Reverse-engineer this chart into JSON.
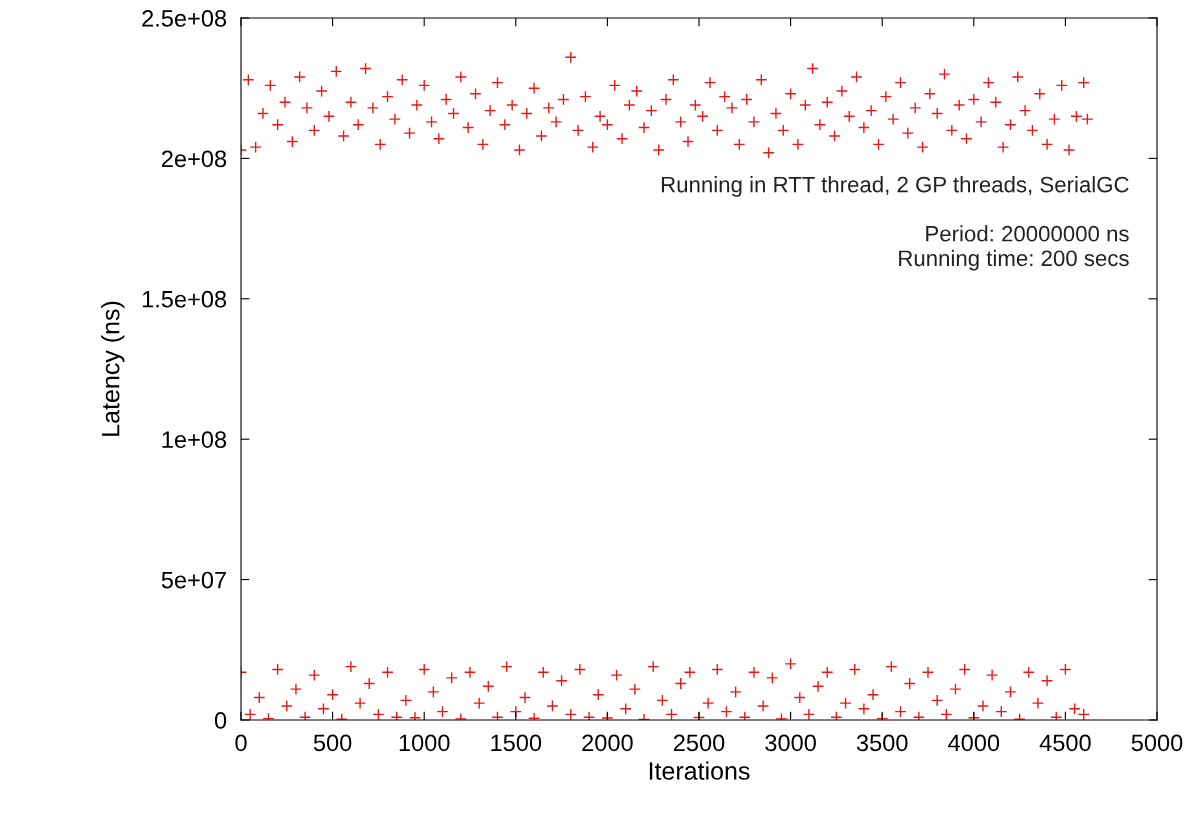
{
  "chart_data": {
    "type": "scatter",
    "xlabel": "Iterations",
    "ylabel": "Latency (ns)",
    "annotations": [
      "Running in RTT thread, 2 GP threads, SerialGC",
      "Period: 20000000 ns",
      "Running time: 200 secs"
    ],
    "xlim": [
      0,
      5000
    ],
    "xticks": [
      0,
      500,
      1000,
      1500,
      2000,
      2500,
      3000,
      3500,
      4000,
      4500,
      5000
    ],
    "ylim": [
      0,
      250000000
    ],
    "yticks": [
      0,
      {
        "value": 50000000,
        "label": "5e+07"
      },
      {
        "value": 100000000,
        "label": "1e+08"
      },
      {
        "value": 150000000,
        "label": "1.5e+08"
      },
      {
        "value": 200000000,
        "label": "2e+08"
      },
      {
        "value": 250000000,
        "label": "2.5e+08"
      }
    ],
    "grid": false,
    "legend": false,
    "marker": "cross",
    "series": [
      {
        "color": "#e81818",
        "x": [
          0,
          40,
          80,
          120,
          160,
          200,
          240,
          280,
          320,
          360,
          400,
          440,
          480,
          520,
          560,
          600,
          640,
          680,
          720,
          760,
          800,
          840,
          880,
          920,
          960,
          1000,
          1040,
          1080,
          1120,
          1160,
          1200,
          1240,
          1280,
          1320,
          1360,
          1400,
          1440,
          1480,
          1520,
          1560,
          1600,
          1640,
          1680,
          1720,
          1760,
          1800,
          1840,
          1880,
          1920,
          1960,
          2000,
          2040,
          2080,
          2120,
          2160,
          2200,
          2240,
          2280,
          2320,
          2360,
          2400,
          2440,
          2480,
          2520,
          2560,
          2600,
          2640,
          2680,
          2720,
          2760,
          2800,
          2840,
          2880,
          2920,
          2960,
          3000,
          3040,
          3080,
          3120,
          3160,
          3200,
          3240,
          3280,
          3320,
          3360,
          3400,
          3440,
          3480,
          3520,
          3560,
          3600,
          3640,
          3680,
          3720,
          3760,
          3800,
          3840,
          3880,
          3920,
          3960,
          4000,
          4040,
          4080,
          4120,
          4160,
          4200,
          4240,
          4280,
          4320,
          4360,
          4400,
          4440,
          4480,
          4520,
          4560,
          4600,
          4620
        ],
        "values": [
          203000000.0,
          228000000.0,
          204000000.0,
          216000000.0,
          226000000.0,
          212000000.0,
          220000000.0,
          206000000.0,
          229000000.0,
          218000000.0,
          210000000.0,
          224000000.0,
          215000000.0,
          231000000.0,
          208000000.0,
          220000000.0,
          212000000.0,
          232000000.0,
          218000000.0,
          205000000.0,
          222000000.0,
          214000000.0,
          228000000.0,
          209000000.0,
          219000000.0,
          226000000.0,
          213000000.0,
          207000000.0,
          221000000.0,
          216000000.0,
          229000000.0,
          211000000.0,
          223000000.0,
          205000000.0,
          217000000.0,
          227000000.0,
          212000000.0,
          219000000.0,
          203000000.0,
          216000000.0,
          225000000.0,
          208000000.0,
          218000000.0,
          213000000.0,
          221000000.0,
          236000000.0,
          210000000.0,
          222000000.0,
          204000000.0,
          215000000.0,
          212000000.0,
          226000000.0,
          207000000.0,
          219000000.0,
          224000000.0,
          211000000.0,
          217000000.0,
          203000000.0,
          221000000.0,
          228000000.0,
          213000000.0,
          206000000.0,
          219000000.0,
          215000000.0,
          227000000.0,
          210000000.0,
          222000000.0,
          218000000.0,
          205000000.0,
          221000000.0,
          213000000.0,
          228000000.0,
          202000000.0,
          216000000.0,
          210000000.0,
          223000000.0,
          205000000.0,
          219000000.0,
          232000000.0,
          212000000.0,
          220000000.0,
          208000000.0,
          224000000.0,
          215000000.0,
          229000000.0,
          211000000.0,
          217000000.0,
          205000000.0,
          222000000.0,
          214000000.0,
          227000000.0,
          209000000.0,
          218000000.0,
          204000000.0,
          223000000.0,
          216000000.0,
          230000000.0,
          210000000.0,
          219000000.0,
          207000000.0,
          221000000.0,
          213000000.0,
          227000000.0,
          220000000.0,
          204000000.0,
          212000000.0,
          229000000.0,
          217000000.0,
          210000000.0,
          223000000.0,
          205000000.0,
          214000000.0,
          226000000.0,
          203000000.0,
          215000000.0,
          227000000.0,
          214000000.0
        ]
      },
      {
        "color": "#e81818",
        "x": [
          0,
          50,
          100,
          150,
          200,
          250,
          300,
          350,
          400,
          450,
          500,
          550,
          600,
          650,
          700,
          750,
          800,
          850,
          900,
          950,
          1000,
          1050,
          1100,
          1150,
          1200,
          1250,
          1300,
          1350,
          1400,
          1450,
          1500,
          1550,
          1600,
          1650,
          1700,
          1750,
          1800,
          1850,
          1900,
          1950,
          2000,
          2050,
          2100,
          2150,
          2200,
          2250,
          2300,
          2350,
          2400,
          2450,
          2500,
          2550,
          2600,
          2650,
          2700,
          2750,
          2800,
          2850,
          2900,
          2950,
          3000,
          3050,
          3100,
          3150,
          3200,
          3250,
          3300,
          3350,
          3400,
          3450,
          3500,
          3550,
          3600,
          3650,
          3700,
          3750,
          3800,
          3850,
          3900,
          3950,
          4000,
          4050,
          4100,
          4150,
          4200,
          4250,
          4300,
          4350,
          4400,
          4450,
          4500,
          4550,
          4600
        ],
        "values": [
          17000000.0,
          2000000.0,
          8000000.0,
          500000.0,
          18000000.0,
          5000000.0,
          11000000.0,
          1000000.0,
          16000000.0,
          4000000.0,
          9000000.0,
          300000.0,
          19000000.0,
          6000000.0,
          13000000.0,
          2000000.0,
          17000000.0,
          1000000.0,
          7000000.0,
          800000.0,
          18000000.0,
          10000000.0,
          3000000.0,
          15000000.0,
          400000.0,
          17000000.0,
          6000000.0,
          12000000.0,
          1000000.0,
          19000000.0,
          3000000.0,
          8000000.0,
          600000.0,
          17000000.0,
          5000000.0,
          14000000.0,
          2000000.0,
          18000000.0,
          1000000.0,
          9000000.0,
          700000.0,
          16000000.0,
          4000000.0,
          11000000.0,
          200000.0,
          19000000.0,
          7000000.0,
          2000000.0,
          13000000.0,
          17000000.0,
          900000.0,
          6000000.0,
          18000000.0,
          3000000.0,
          10000000.0,
          1000000.0,
          17000000.0,
          5000000.0,
          15000000.0,
          400000.0,
          20000000.0,
          8000000.0,
          2000000.0,
          12000000.0,
          17000000.0,
          1000000.0,
          6000000.0,
          18000000.0,
          4000000.0,
          9000000.0,
          500000.0,
          19000000.0,
          3000000.0,
          13000000.0,
          1000000.0,
          17000000.0,
          7000000.0,
          2000000.0,
          11000000.0,
          18000000.0,
          800000.0,
          5000000.0,
          16000000.0,
          3000000.0,
          10000000.0,
          300000.0,
          17000000.0,
          6000000.0,
          14000000.0,
          1000000.0,
          18000000.0,
          4000000.0,
          2000000.0
        ]
      }
    ]
  }
}
